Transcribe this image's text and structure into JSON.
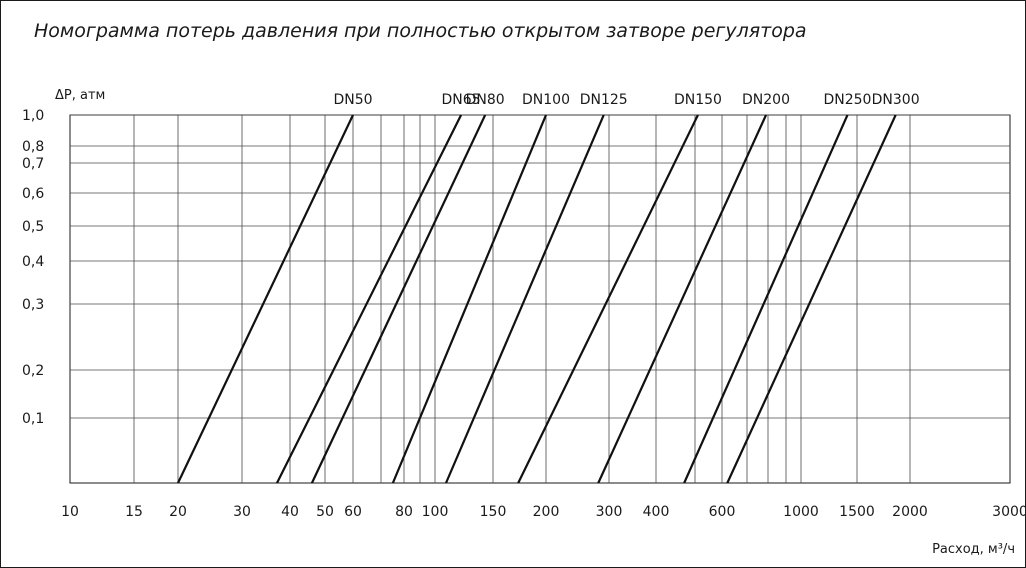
{
  "chart_data": {
    "type": "line",
    "title": "Номограмма потерь давления при полностью открытом затворе регулятора",
    "ylabel": "ΔР, атм",
    "xlabel": "Расход, м³/ч",
    "x_ticks": [
      {
        "v": 10,
        "label": "10"
      },
      {
        "v": 15,
        "label": "15"
      },
      {
        "v": 20,
        "label": "20"
      },
      {
        "v": 30,
        "label": "30"
      },
      {
        "v": 40,
        "label": "40"
      },
      {
        "v": 50,
        "label": "50"
      },
      {
        "v": 60,
        "label": "60"
      },
      {
        "v": 80,
        "label": "80"
      },
      {
        "v": 100,
        "label": "100"
      },
      {
        "v": 150,
        "label": "150"
      },
      {
        "v": 200,
        "label": "200"
      },
      {
        "v": 300,
        "label": "300"
      },
      {
        "v": 400,
        "label": "400"
      },
      {
        "v": 600,
        "label": "600"
      },
      {
        "v": 1000,
        "label": "1000"
      },
      {
        "v": 1500,
        "label": "1500"
      },
      {
        "v": 2000,
        "label": "2000"
      },
      {
        "v": 3000,
        "label": "3000"
      }
    ],
    "x_grid": [
      15,
      20,
      30,
      40,
      50,
      60,
      70,
      80,
      90,
      100,
      150,
      200,
      300,
      400,
      500,
      600,
      700,
      800,
      900,
      1000,
      1500,
      2000
    ],
    "y_ticks": [
      {
        "v": 1.0,
        "label": "1,0"
      },
      {
        "v": 0.8,
        "label": "0,8"
      },
      {
        "v": 0.7,
        "label": "0,7"
      },
      {
        "v": 0.6,
        "label": "0,6"
      },
      {
        "v": 0.5,
        "label": "0,5"
      },
      {
        "v": 0.4,
        "label": "0,4"
      },
      {
        "v": 0.3,
        "label": "0,3"
      },
      {
        "v": 0.2,
        "label": "0,2"
      },
      {
        "v": 0.1,
        "label": "0,1"
      }
    ],
    "y_min_row": 0.0,
    "series": [
      {
        "name": "DN50",
        "x_bottom": 20,
        "x_top": 60
      },
      {
        "name": "DN65",
        "x_bottom": 37,
        "x_top": 120
      },
      {
        "name": "DN80",
        "x_bottom": 46,
        "x_top": 142
      },
      {
        "name": "DN100",
        "x_bottom": 75,
        "x_top": 200
      },
      {
        "name": "DN125",
        "x_bottom": 108,
        "x_top": 290
      },
      {
        "name": "DN150",
        "x_bottom": 172,
        "x_top": 510
      },
      {
        "name": "DN200",
        "x_bottom": 280,
        "x_top": 790
      },
      {
        "name": "DN250",
        "x_bottom": 470,
        "x_top": 1400
      },
      {
        "name": "DN300",
        "x_bottom": 620,
        "x_top": 1850
      }
    ],
    "grid": true
  }
}
